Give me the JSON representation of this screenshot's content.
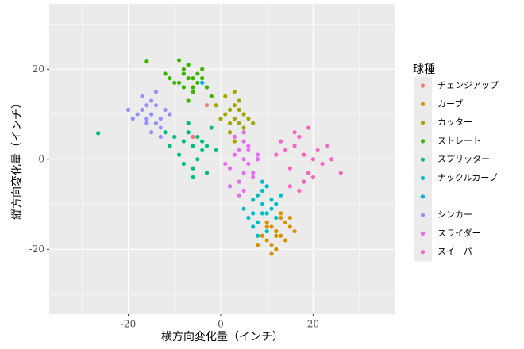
{
  "chart_data": {
    "type": "scatter",
    "x_label": "横方向変化量（インチ）",
    "y_label": "縦方向変化量（インチ）",
    "legend_title": "球種",
    "legend_position": "right",
    "grid": true,
    "xlim": [
      -37.1,
      37.8
    ],
    "ylim": [
      -34.4,
      34.5
    ],
    "xticks": [
      -20,
      0,
      20
    ],
    "yticks": [
      -20,
      0,
      20
    ],
    "series": [
      {
        "name": "チェンジアップ",
        "color": "#F8766D",
        "x": [
          -6,
          -3
        ],
        "y": [
          5,
          12
        ]
      },
      {
        "name": "カーブ",
        "color": "#D89000",
        "x": [
          12,
          11,
          13,
          10,
          14,
          12,
          9,
          15,
          11,
          13,
          12,
          10,
          14,
          16,
          11,
          13,
          8,
          12,
          15,
          10
        ],
        "y": [
          -16,
          -15,
          -17,
          -14,
          -18,
          -16,
          -17,
          -15,
          -19,
          -13,
          -20,
          -18,
          -14,
          -16,
          -21,
          -12,
          -19,
          -17,
          -13,
          -15
        ]
      },
      {
        "name": "カッター",
        "color": "#A3A500",
        "x": [
          3,
          2,
          4,
          1,
          5,
          3,
          6,
          2,
          4,
          0,
          3,
          5,
          1,
          4,
          2,
          7,
          3,
          -1,
          5,
          3
        ],
        "y": [
          9,
          11,
          8,
          10,
          7,
          12,
          9,
          6,
          13,
          9,
          5,
          10,
          14,
          11,
          8,
          8,
          4,
          12,
          6,
          15
        ]
      },
      {
        "name": "ストレート",
        "color": "#39B600",
        "x": [
          -7,
          -9,
          -5,
          -6,
          -8,
          -4,
          -10,
          -7,
          -3,
          -11,
          -6,
          -8,
          -5,
          -9,
          -2,
          -7,
          -12,
          -4,
          -6,
          -8,
          -16
        ],
        "y": [
          18,
          17,
          19,
          16,
          20,
          18,
          17,
          21,
          16,
          18,
          15,
          19,
          17,
          22,
          14,
          13,
          19,
          20,
          18,
          16,
          21.7
        ]
      },
      {
        "name": "スプリッター",
        "color": "#00BF7D",
        "x": [
          -6,
          -8,
          -4,
          -10,
          -5,
          -7,
          -3,
          -9,
          -6,
          -2,
          -11,
          -5,
          -8,
          -4,
          -7,
          -1,
          -6,
          -12,
          -26.5,
          -3
        ],
        "y": [
          3,
          4,
          2,
          5,
          0,
          6,
          3,
          1,
          -2,
          7,
          3,
          5,
          -1,
          4,
          8,
          2,
          -4,
          6,
          5.8,
          -3
        ]
      },
      {
        "name": "ナックルカーブ",
        "color": "#00BFC4",
        "x": [
          9,
          8,
          10,
          7,
          11,
          9,
          6,
          12,
          8,
          10,
          9,
          7,
          11,
          5,
          9,
          10,
          8,
          12,
          13,
          7
        ],
        "y": [
          -10,
          -8,
          -12,
          -9,
          -11,
          -7,
          -13,
          -10,
          -14,
          -6,
          -12,
          -15,
          -9,
          -11,
          -5,
          -16,
          -17,
          -13,
          -8,
          -12
        ]
      },
      {
        "name": null,
        "color": "#00B0F6",
        "x": [
          -4
        ],
        "y": [
          17
        ]
      },
      {
        "name": "シンカー",
        "color": "#9590FF",
        "x": [
          -15,
          -17,
          -13,
          -16,
          -14,
          -18,
          -12,
          -15,
          -19,
          -13,
          -16,
          -14,
          -11,
          -17,
          -15,
          -20,
          -13,
          -16,
          -14,
          -15
        ],
        "y": [
          10,
          11,
          9,
          12,
          8,
          10,
          11,
          13,
          9,
          7,
          8,
          12,
          10,
          14,
          6,
          11,
          5,
          9,
          15,
          10
        ]
      },
      {
        "name": "スライダー",
        "color": "#E76BF3",
        "x": [
          5,
          4,
          6,
          3,
          7,
          5,
          2,
          8,
          4,
          6,
          5,
          3,
          7,
          1,
          5,
          4,
          6,
          2,
          8,
          5
        ],
        "y": [
          0,
          2,
          -1,
          1,
          -3,
          4,
          -2,
          0,
          -5,
          3,
          -7,
          5,
          -4,
          -1,
          6,
          -8,
          2,
          -6,
          1,
          -3
        ]
      },
      {
        "name": "スイーパー",
        "color": "#FF62BC",
        "x": [
          18,
          16,
          20,
          14,
          22,
          17,
          19,
          13,
          21,
          15,
          24,
          18,
          16,
          20,
          12,
          23,
          17,
          19,
          26,
          15
        ],
        "y": [
          1,
          3,
          0,
          2,
          -1,
          5,
          -3,
          4,
          2,
          -2,
          0,
          -5,
          6,
          -4,
          1,
          3,
          -7,
          7,
          -3,
          -6
        ]
      }
    ]
  }
}
